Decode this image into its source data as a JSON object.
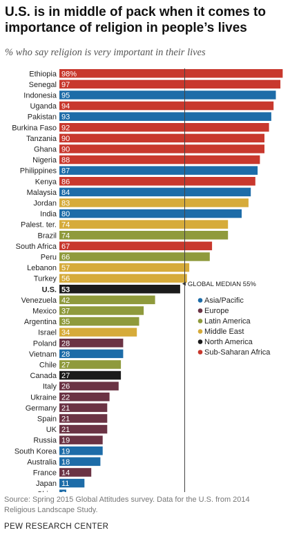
{
  "header": {
    "title": "U.S. is in middle of pack when it comes to importance of religion in people’s lives",
    "subtitle": "% who say religion is very important in their lives"
  },
  "footer": {
    "source": "Source: Spring 2015 Global Attitudes survey. Data for the U.S. from 2014 Religious Landscape Study.",
    "brand": "PEW RESEARCH CENTER"
  },
  "colors": {
    "Asia/Pacific": "#1d6ca8",
    "Europe": "#6b3344",
    "Latin America": "#8f9a3c",
    "Middle East": "#d6ab3a",
    "North America": "#1b1b1b",
    "Sub-Saharan Africa": "#c8382d"
  },
  "chart_data": {
    "type": "bar",
    "orientation": "horizontal",
    "xlim": [
      0,
      100
    ],
    "first_value_suffix": "%",
    "reference_line": {
      "value": 55,
      "label": "GLOBAL MEDIAN 55%"
    },
    "highlight": "U.S.",
    "legend": {
      "position": "right",
      "entries": [
        "Asia/Pacific",
        "Europe",
        "Latin America",
        "Middle East",
        "North America",
        "Sub-Saharan Africa"
      ]
    },
    "categories": [
      "Ethiopia",
      "Senegal",
      "Indonesia",
      "Uganda",
      "Pakistan",
      "Burkina Faso",
      "Tanzania",
      "Ghana",
      "Nigeria",
      "Philippines",
      "Kenya",
      "Malaysia",
      "Jordan",
      "India",
      "Palest. ter.",
      "Brazil",
      "South Africa",
      "Peru",
      "Lebanon",
      "Turkey",
      "U.S.",
      "Venezuela",
      "Mexico",
      "Argentina",
      "Israel",
      "Poland",
      "Vietnam",
      "Chile",
      "Canada",
      "Italy",
      "Ukraine",
      "Germany",
      "Spain",
      "UK",
      "Russia",
      "South Korea",
      "Australia",
      "France",
      "Japan",
      "China"
    ],
    "values": [
      98,
      97,
      95,
      94,
      93,
      92,
      90,
      90,
      88,
      87,
      86,
      84,
      83,
      80,
      74,
      74,
      67,
      66,
      57,
      56,
      53,
      42,
      37,
      35,
      34,
      28,
      28,
      27,
      27,
      26,
      22,
      21,
      21,
      21,
      19,
      19,
      18,
      14,
      11,
      3
    ],
    "regions": [
      "Sub-Saharan Africa",
      "Sub-Saharan Africa",
      "Asia/Pacific",
      "Sub-Saharan Africa",
      "Asia/Pacific",
      "Sub-Saharan Africa",
      "Sub-Saharan Africa",
      "Sub-Saharan Africa",
      "Sub-Saharan Africa",
      "Asia/Pacific",
      "Sub-Saharan Africa",
      "Asia/Pacific",
      "Middle East",
      "Asia/Pacific",
      "Middle East",
      "Latin America",
      "Sub-Saharan Africa",
      "Latin America",
      "Middle East",
      "Middle East",
      "North America",
      "Latin America",
      "Latin America",
      "Latin America",
      "Middle East",
      "Europe",
      "Asia/Pacific",
      "Latin America",
      "North America",
      "Europe",
      "Europe",
      "Europe",
      "Europe",
      "Europe",
      "Europe",
      "Asia/Pacific",
      "Asia/Pacific",
      "Europe",
      "Asia/Pacific",
      "Asia/Pacific"
    ]
  }
}
